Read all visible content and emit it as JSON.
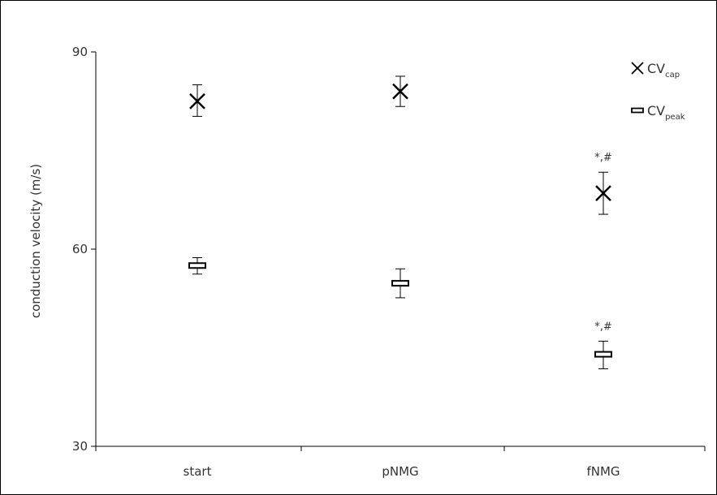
{
  "chart_data": {
    "type": "scatter",
    "title": "",
    "xlabel": "",
    "ylabel": "conduction velocity (m/s)",
    "categories": [
      "start",
      "pNMG",
      "fNMG"
    ],
    "ylim": [
      30,
      90
    ],
    "yticks": [
      30,
      60,
      90
    ],
    "grid": false,
    "legend_position": "top-right",
    "series": [
      {
        "name": "CV",
        "subscript": "cap",
        "marker": "x",
        "values": [
          82.5,
          84.0,
          68.5
        ],
        "error_plus": [
          2.5,
          2.3,
          3.2
        ],
        "error_minus": [
          2.3,
          2.3,
          3.2
        ]
      },
      {
        "name": "CV",
        "subscript": "peak",
        "marker": "rect",
        "values": [
          57.5,
          54.8,
          44.0
        ],
        "error_plus": [
          1.2,
          2.2,
          2.0
        ],
        "error_minus": [
          1.3,
          2.2,
          2.2
        ]
      }
    ],
    "annotations": [
      {
        "category": "fNMG",
        "series": 0,
        "text": "*,#"
      },
      {
        "category": "fNMG",
        "series": 1,
        "text": "*,#"
      }
    ]
  }
}
